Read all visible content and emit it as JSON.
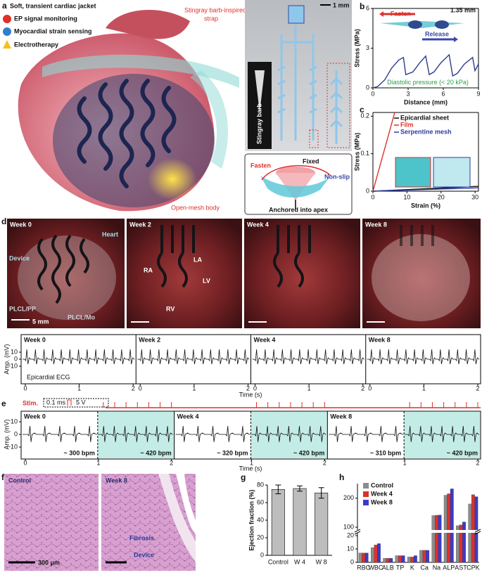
{
  "panel_a": {
    "letter": "a",
    "title": "Soft, transient cardiac jacket",
    "legend": [
      "EP signal monitoring",
      "Myocardial strain sensing",
      "Electrotherapy"
    ],
    "callouts": [
      "Stingray barb-inspired strap",
      "Open-mesh body"
    ],
    "photo": {
      "scale": "1 mm",
      "inset": "Stingray barb"
    },
    "schematic": {
      "labels": [
        "Fasten",
        "Fixed",
        "Non-slip",
        "Anchored into apex"
      ]
    }
  },
  "chart_data": [
    {
      "type": "line",
      "letter": "b",
      "xlabel": "Distance (mm)",
      "ylabel": "Stress (MPa)",
      "xlim": [
        0,
        9
      ],
      "ylim": [
        0,
        6
      ],
      "xticks": [
        0,
        3,
        6,
        9
      ],
      "yticks": [
        0,
        3,
        6
      ],
      "x": [
        0,
        0.4,
        1,
        1.6,
        2.2,
        2.6,
        2.8,
        3.4,
        4,
        4.5,
        4.8,
        5.2,
        5.8,
        6.5,
        6.8,
        7.2,
        7.8,
        8.5,
        8.7,
        9
      ],
      "series": [
        {
          "color": "#2c3b8f",
          "values": [
            0,
            0.1,
            0.6,
            1.5,
            2.1,
            2.3,
            1.0,
            1.2,
            1.9,
            2.4,
            1.0,
            1.2,
            1.9,
            2.5,
            0.9,
            1.1,
            1.8,
            2.3,
            1.3,
            1.8
          ]
        }
      ],
      "reference": {
        "label": "Diastolic pressure (< 20 kPa)",
        "value": 0.02,
        "color": "#2a9d4a"
      },
      "arrows": [
        {
          "label": "Fasten",
          "color": "#e0302a"
        },
        {
          "label": "Release",
          "color": "#3a48a8"
        }
      ],
      "annotation": "1.35 mm"
    },
    {
      "type": "line",
      "letter": "c",
      "xlabel": "Strain (%)",
      "ylabel": "Stress (MPa)",
      "xlim": [
        0,
        31
      ],
      "ylim": [
        0,
        0.21
      ],
      "xticks": [
        0,
        10,
        20,
        30
      ],
      "yticks": [
        0,
        0.1,
        0.2
      ],
      "series": [
        {
          "name": "Epicardial sheet",
          "color": "#111111",
          "x": [
            0,
            31
          ],
          "values": [
            0,
            0.013
          ]
        },
        {
          "name": "Film",
          "color": "#e0302a",
          "x": [
            0,
            6.4
          ],
          "values": [
            0,
            0.21
          ]
        },
        {
          "name": "Serpentine mesh",
          "color": "#2c3b9f",
          "x": [
            0,
            31
          ],
          "values": [
            0,
            0.009
          ]
        }
      ]
    },
    {
      "type": "bar",
      "letter": "g",
      "ylabel": "Ejection fraction (%)",
      "categories": [
        "Control",
        "W 4",
        "W 8"
      ],
      "values": [
        75,
        76,
        71
      ],
      "errors": [
        5,
        3,
        6
      ],
      "color": "#bdbdbd",
      "ylim": [
        0,
        80
      ],
      "yticks": [
        0,
        20,
        40,
        60,
        80
      ]
    },
    {
      "type": "grouped_bar",
      "letter": "h",
      "categories": [
        "RBC",
        "WBC",
        "ALB",
        "TP",
        "K",
        "Ca",
        "Na",
        "ALP",
        "AST",
        "CPK"
      ],
      "series": [
        {
          "name": "Control",
          "color": "#8c8c8c",
          "values": [
            7,
            11,
            3,
            5,
            4,
            9,
            140,
            210,
            105,
            180
          ]
        },
        {
          "name": "Week 4",
          "color": "#e0302a",
          "values": [
            7,
            13,
            3,
            5,
            4,
            9,
            141,
            215,
            108,
            212
          ]
        },
        {
          "name": "Week 8",
          "color": "#3b3bc8",
          "values": [
            7,
            14,
            3,
            5,
            5,
            9,
            142,
            232,
            118,
            205
          ]
        }
      ],
      "ylim": [
        0,
        250
      ],
      "yticks": [
        0,
        10,
        20,
        100,
        200
      ],
      "axis_break": [
        20,
        100
      ]
    }
  ],
  "panel_d": {
    "letter": "d",
    "photos": [
      {
        "label": "Week 0",
        "notes": [
          "Device",
          "Heart",
          "PLCL/PP",
          "PLCL/Mo",
          "5 mm"
        ]
      },
      {
        "label": "Week 2",
        "notes": [
          "RA",
          "LA",
          "LV",
          "RV"
        ]
      },
      {
        "label": "Week 4"
      },
      {
        "label": "Week 8"
      }
    ],
    "ecg": {
      "ylabel": "Amp. (mV)",
      "yticks": [
        10,
        0,
        -10
      ],
      "xlabel": "Time (s)",
      "xticks": [
        0,
        1,
        2
      ],
      "trace": "Epicardial  ECG",
      "weeks": [
        "Week 0",
        "Week 2",
        "Week 4",
        "Week 8"
      ]
    }
  },
  "panel_e": {
    "letter": "e",
    "stim": "Stim.",
    "pulse": [
      "0.1 ms",
      "5 V"
    ],
    "ylabel": "Amp. (mV)",
    "yticks": [
      10,
      0,
      -10
    ],
    "xlabel": "Time (s)",
    "xticks": [
      0,
      1,
      2
    ],
    "weeks": [
      {
        "label": "Week 0",
        "rates": [
          "~ 300 bpm",
          "~ 420 bpm"
        ]
      },
      {
        "label": "Week 4",
        "rates": [
          "~ 320 bpm",
          "~ 420 bpm"
        ]
      },
      {
        "label": "Week 8",
        "rates": [
          "~ 310 bpm",
          "~ 420 bpm"
        ]
      }
    ]
  },
  "panel_f": {
    "letter": "f",
    "images": [
      {
        "label": "Control",
        "scale": "300 μm"
      },
      {
        "label": "Week 8",
        "notes": [
          "Fibrosis",
          "Device"
        ]
      }
    ]
  }
}
